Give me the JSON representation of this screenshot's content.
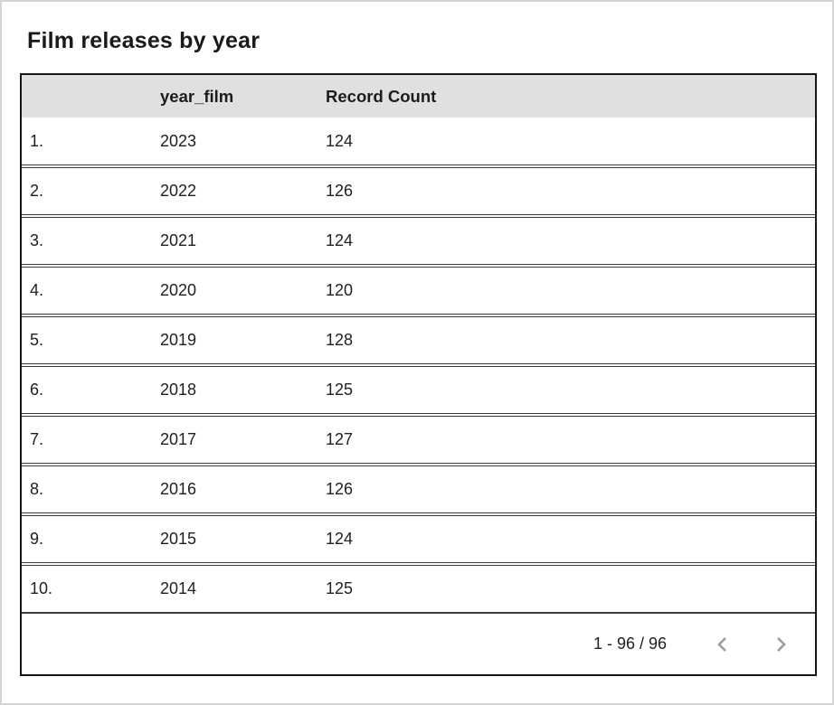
{
  "title": "Film releases by year",
  "table": {
    "headers": [
      "",
      "year_film",
      "Record Count"
    ],
    "rows": [
      {
        "index": "1.",
        "year_film": "2023",
        "record_count": "124"
      },
      {
        "index": "2.",
        "year_film": "2022",
        "record_count": "126"
      },
      {
        "index": "3.",
        "year_film": "2021",
        "record_count": "124"
      },
      {
        "index": "4.",
        "year_film": "2020",
        "record_count": "120"
      },
      {
        "index": "5.",
        "year_film": "2019",
        "record_count": "128"
      },
      {
        "index": "6.",
        "year_film": "2018",
        "record_count": "125"
      },
      {
        "index": "7.",
        "year_film": "2017",
        "record_count": "127"
      },
      {
        "index": "8.",
        "year_film": "2016",
        "record_count": "126"
      },
      {
        "index": "9.",
        "year_film": "2015",
        "record_count": "124"
      },
      {
        "index": "10.",
        "year_film": "2014",
        "record_count": "125"
      }
    ]
  },
  "pagination": {
    "range_label": "1 - 96 / 96",
    "prev_icon": "chevron-left",
    "next_icon": "chevron-right"
  },
  "colors": {
    "header_background": "#e0e0e0",
    "table_border": "#161616",
    "row_border": "#3a3a3a",
    "text": "#212121",
    "chevron": "#9e9e9e",
    "page_border": "#d5d5d5"
  },
  "chart_data": {
    "type": "table",
    "title": "Film releases by year",
    "columns": [
      "year_film",
      "Record Count"
    ],
    "categories": [
      "2023",
      "2022",
      "2021",
      "2020",
      "2019",
      "2018",
      "2017",
      "2016",
      "2015",
      "2014"
    ],
    "values": [
      124,
      126,
      124,
      120,
      128,
      125,
      127,
      126,
      124,
      125
    ],
    "row_total_shown": "1 - 96 / 96"
  }
}
